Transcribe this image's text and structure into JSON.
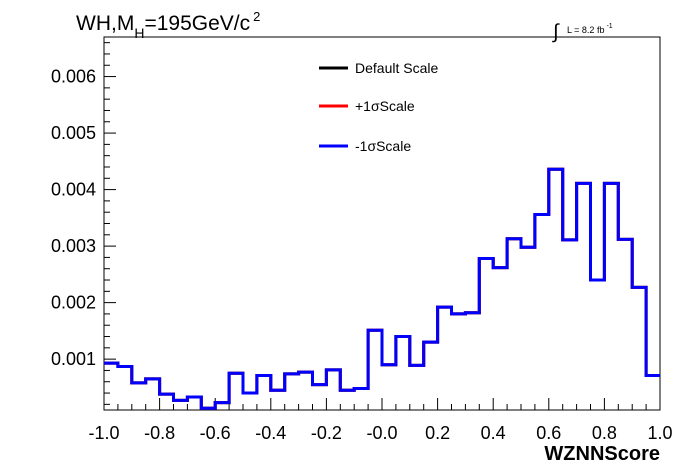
{
  "title": {
    "prefix": "WH,M",
    "sub": "H",
    "mid": "=195GeV/c",
    "sup": "2"
  },
  "lumi": {
    "integral": "∫",
    "text": "L = 8.2 fb",
    "sup": "-1"
  },
  "chart_data": {
    "type": "line",
    "xlabel": "WZNNScore",
    "ylabel": "",
    "xlim": [
      -1.0,
      1.0
    ],
    "ylim": [
      0.0001,
      0.0067
    ],
    "x_ticks": [
      "-1.0",
      "-0.8",
      "-0.6",
      "-0.4",
      "-0.2",
      "-0.0",
      "0.2",
      "0.4",
      "0.6",
      "0.8",
      "1.0"
    ],
    "y_ticks": [
      "0.001",
      "0.002",
      "0.003",
      "0.004",
      "0.005",
      "0.006"
    ],
    "legend_position": "top-center",
    "grid": false,
    "bin_edges": [
      -1.0,
      -0.95,
      -0.9,
      -0.85,
      -0.8,
      -0.75,
      -0.7,
      -0.65,
      -0.6,
      -0.55,
      -0.5,
      -0.45,
      -0.4,
      -0.35,
      -0.3,
      -0.25,
      -0.2,
      -0.15,
      -0.1,
      -0.05,
      0.0,
      0.05,
      0.1,
      0.15,
      0.2,
      0.25,
      0.3,
      0.35,
      0.4,
      0.45,
      0.5,
      0.55,
      0.6,
      0.65,
      0.7,
      0.75,
      0.8,
      0.85,
      0.9,
      0.95,
      1.0
    ],
    "series": [
      {
        "name": "Default Scale",
        "color": "#000000",
        "values": [
          0.00093,
          0.00087,
          0.00058,
          0.00065,
          0.00038,
          0.00027,
          0.00033,
          0.00013,
          0.00023,
          0.00075,
          0.0004,
          0.00071,
          0.00045,
          0.00074,
          0.00077,
          0.00055,
          0.00081,
          0.00045,
          0.00048,
          0.00151,
          0.0009,
          0.0014,
          0.00089,
          0.0013,
          0.00192,
          0.0018,
          0.00182,
          0.00278,
          0.00262,
          0.00313,
          0.00298,
          0.00356,
          0.00436,
          0.00311,
          0.00411,
          0.0024,
          0.00411,
          0.00312,
          0.00227,
          0.00071
        ]
      },
      {
        "name": "+1σScale",
        "color": "#ff0000",
        "values": [
          0.00093,
          0.00087,
          0.00058,
          0.00065,
          0.00038,
          0.00027,
          0.00033,
          0.00013,
          0.00023,
          0.00075,
          0.0004,
          0.00071,
          0.00045,
          0.00074,
          0.00077,
          0.00055,
          0.00081,
          0.00045,
          0.00048,
          0.00151,
          0.0009,
          0.0014,
          0.00089,
          0.0013,
          0.00192,
          0.0018,
          0.00182,
          0.00278,
          0.00262,
          0.00313,
          0.00298,
          0.00356,
          0.00436,
          0.00311,
          0.00411,
          0.0024,
          0.00411,
          0.00312,
          0.00227,
          0.00071
        ]
      },
      {
        "name": "-1σScale",
        "color": "#0000ff",
        "values": [
          0.00093,
          0.00087,
          0.00058,
          0.00065,
          0.00038,
          0.00027,
          0.00033,
          0.00013,
          0.00023,
          0.00075,
          0.0004,
          0.00071,
          0.00045,
          0.00074,
          0.00077,
          0.00055,
          0.00081,
          0.00045,
          0.00048,
          0.00151,
          0.0009,
          0.0014,
          0.00089,
          0.0013,
          0.00192,
          0.0018,
          0.00182,
          0.00278,
          0.00262,
          0.00313,
          0.00298,
          0.00356,
          0.00436,
          0.00311,
          0.00411,
          0.0024,
          0.00411,
          0.00312,
          0.00227,
          0.00071
        ]
      }
    ]
  }
}
